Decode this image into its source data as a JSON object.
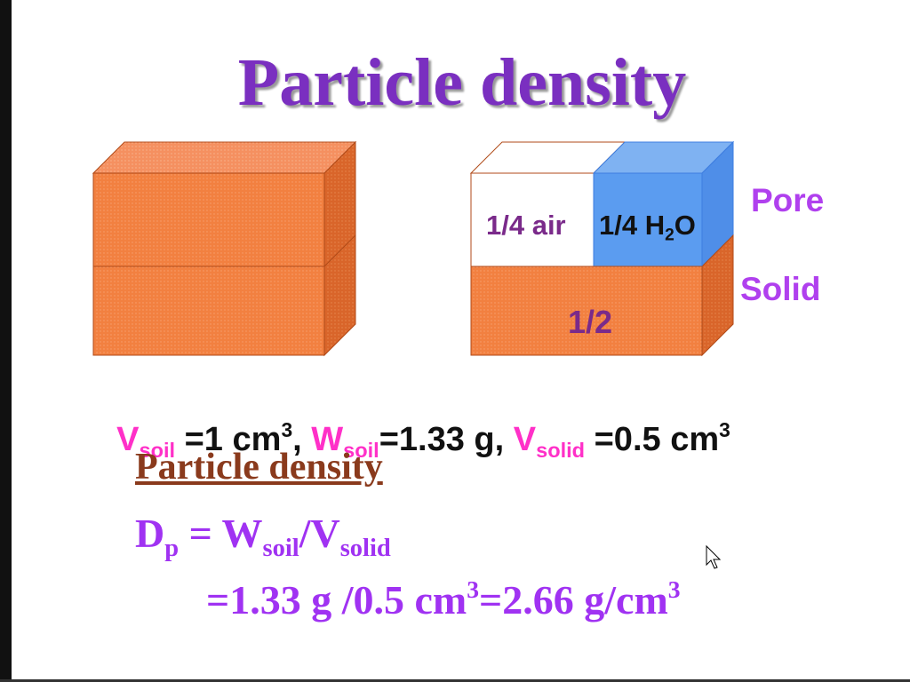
{
  "title": "Particle density",
  "diagram": {
    "air": "1/4 air",
    "water": [
      "1/4 H",
      "2",
      "O"
    ],
    "pore": "Pore",
    "solid": "Solid",
    "solid_fraction": "1/2"
  },
  "given": [
    "V",
    "soil",
    " =1 cm",
    "3",
    ", ",
    "W",
    "soil",
    "=1.33 g, ",
    "V",
    "solid",
    " =0.5 cm",
    "3"
  ],
  "heading": "Particle density",
  "formula": [
    "D",
    "p",
    " = W",
    "soil",
    "/V",
    "solid"
  ],
  "result": [
    "=1.33 g /0.5 cm",
    "3",
    "=2.66 g/cm",
    "3"
  ]
}
